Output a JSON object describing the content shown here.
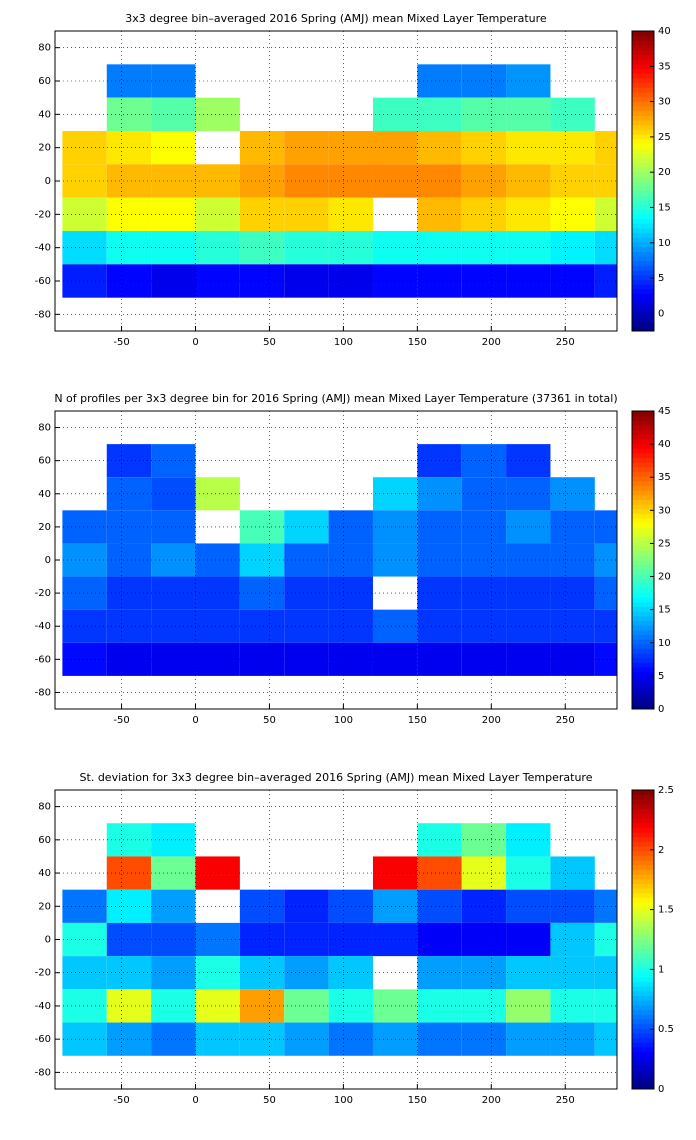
{
  "chart_data": [
    {
      "type": "heatmap",
      "title": "3x3 degree bin–averaged 2016 Spring (AMJ) mean Mixed Layer Temperature",
      "x": [
        -75,
        -45,
        -15,
        15,
        45,
        75,
        105,
        135,
        165,
        195,
        225,
        255,
        285
      ],
      "y": [
        80,
        60,
        40,
        20,
        0,
        -20,
        -40,
        -60,
        -80
      ],
      "values": [
        [
          null,
          null,
          null,
          null,
          null,
          null,
          null,
          null,
          null,
          null,
          null,
          null,
          null
        ],
        [
          null,
          8,
          8,
          null,
          null,
          null,
          null,
          null,
          8,
          8,
          9,
          null,
          null
        ],
        [
          null,
          18,
          17,
          20,
          null,
          null,
          null,
          16,
          16,
          17,
          17,
          16,
          null
        ],
        [
          26,
          25,
          24,
          null,
          27,
          28,
          28,
          28,
          27,
          26,
          25,
          25,
          26
        ],
        [
          26,
          27,
          27,
          27,
          28,
          29,
          29,
          29,
          29,
          28,
          27,
          26,
          26
        ],
        [
          22,
          24,
          24,
          22,
          26,
          26,
          25,
          null,
          27,
          26,
          25,
          24,
          22
        ],
        [
          12,
          14,
          14,
          15,
          16,
          15,
          15,
          14,
          14,
          14,
          14,
          13,
          12
        ],
        [
          4,
          3,
          2,
          3,
          3,
          2,
          2,
          3,
          3,
          3,
          3,
          3,
          4
        ],
        [
          null,
          null,
          null,
          null,
          null,
          null,
          null,
          null,
          null,
          null,
          null,
          null,
          null
        ]
      ],
      "xlim": [
        -95,
        285
      ],
      "ylim": [
        -90,
        90
      ],
      "xticks": [
        -50,
        0,
        50,
        100,
        150,
        200,
        250
      ],
      "yticks": [
        -80,
        -60,
        -40,
        -20,
        0,
        20,
        40,
        60,
        80
      ],
      "clim": [
        -2.5,
        40
      ],
      "cticks": [
        0,
        5,
        10,
        15,
        20,
        25,
        30,
        35,
        40
      ],
      "colormap": "jet",
      "grid": true
    },
    {
      "type": "heatmap",
      "title": "N of profiles per 3x3 degree bin for 2016 Spring (AMJ) mean Mixed Layer Temperature  (37361 in total)",
      "x": [
        -75,
        -45,
        -15,
        15,
        45,
        75,
        105,
        135,
        165,
        195,
        225,
        255,
        285
      ],
      "y": [
        80,
        60,
        40,
        20,
        0,
        -20,
        -40,
        -60,
        -80
      ],
      "values": [
        [
          null,
          null,
          null,
          null,
          null,
          null,
          null,
          null,
          null,
          null,
          null,
          null,
          null
        ],
        [
          null,
          8,
          10,
          null,
          null,
          null,
          null,
          null,
          8,
          10,
          8,
          null,
          null
        ],
        [
          null,
          10,
          9,
          25,
          null,
          null,
          null,
          15,
          12,
          10,
          10,
          12,
          null
        ],
        [
          10,
          10,
          10,
          null,
          20,
          15,
          10,
          12,
          10,
          10,
          12,
          10,
          10
        ],
        [
          12,
          10,
          12,
          10,
          15,
          10,
          10,
          12,
          10,
          10,
          10,
          10,
          12
        ],
        [
          10,
          8,
          8,
          8,
          10,
          8,
          8,
          null,
          8,
          8,
          8,
          8,
          10
        ],
        [
          8,
          8,
          8,
          8,
          8,
          8,
          8,
          10,
          8,
          8,
          8,
          8,
          8
        ],
        [
          6,
          5,
          5,
          5,
          5,
          5,
          5,
          5,
          5,
          5,
          5,
          5,
          6
        ],
        [
          null,
          null,
          null,
          null,
          null,
          null,
          null,
          null,
          null,
          null,
          null,
          null,
          null
        ]
      ],
      "xlim": [
        -95,
        285
      ],
      "ylim": [
        -90,
        90
      ],
      "xticks": [
        -50,
        0,
        50,
        100,
        150,
        200,
        250
      ],
      "yticks": [
        -80,
        -60,
        -40,
        -20,
        0,
        20,
        40,
        60,
        80
      ],
      "clim": [
        0,
        45
      ],
      "cticks": [
        0,
        5,
        10,
        15,
        20,
        25,
        30,
        35,
        40,
        45
      ],
      "colormap": "jet",
      "grid": true
    },
    {
      "type": "heatmap",
      "title": "St. deviation for 3x3 degree bin–averaged 2016 Spring (AMJ) mean Mixed Layer Temperature",
      "x": [
        -75,
        -45,
        -15,
        15,
        45,
        75,
        105,
        135,
        165,
        195,
        225,
        255,
        285
      ],
      "y": [
        80,
        60,
        40,
        20,
        0,
        -20,
        -40,
        -60,
        -80
      ],
      "values": [
        [
          null,
          null,
          null,
          null,
          null,
          null,
          null,
          null,
          null,
          null,
          null,
          null,
          null
        ],
        [
          null,
          1.0,
          0.9,
          null,
          null,
          null,
          null,
          null,
          1.0,
          1.2,
          0.9,
          null,
          null
        ],
        [
          null,
          2.0,
          1.2,
          2.2,
          null,
          null,
          null,
          2.2,
          2.0,
          1.5,
          1.0,
          0.8,
          null
        ],
        [
          0.6,
          0.9,
          0.7,
          null,
          0.5,
          0.4,
          0.5,
          0.7,
          0.5,
          0.4,
          0.5,
          0.5,
          0.6
        ],
        [
          1.0,
          0.5,
          0.5,
          0.6,
          0.4,
          0.4,
          0.4,
          0.4,
          0.3,
          0.3,
          0.3,
          0.8,
          1.0
        ],
        [
          0.8,
          0.8,
          0.7,
          1.0,
          0.8,
          0.7,
          0.8,
          null,
          0.7,
          0.7,
          0.8,
          0.8,
          0.8
        ],
        [
          1.0,
          1.5,
          1.0,
          1.5,
          1.8,
          1.2,
          1.0,
          1.2,
          1.0,
          1.0,
          1.3,
          1.0,
          1.0
        ],
        [
          0.8,
          0.7,
          0.6,
          0.8,
          0.8,
          0.7,
          0.6,
          0.7,
          0.6,
          0.6,
          0.7,
          0.7,
          0.8
        ],
        [
          null,
          null,
          null,
          null,
          null,
          null,
          null,
          null,
          null,
          null,
          null,
          null,
          null
        ]
      ],
      "xlim": [
        -95,
        285
      ],
      "ylim": [
        -90,
        90
      ],
      "xticks": [
        -50,
        0,
        50,
        100,
        150,
        200,
        250
      ],
      "yticks": [
        -80,
        -60,
        -40,
        -20,
        0,
        20,
        40,
        60,
        80
      ],
      "clim": [
        0,
        2.5
      ],
      "cticks": [
        0,
        0.5,
        1,
        1.5,
        2,
        2.5
      ],
      "colormap": "jet",
      "grid": true
    }
  ]
}
